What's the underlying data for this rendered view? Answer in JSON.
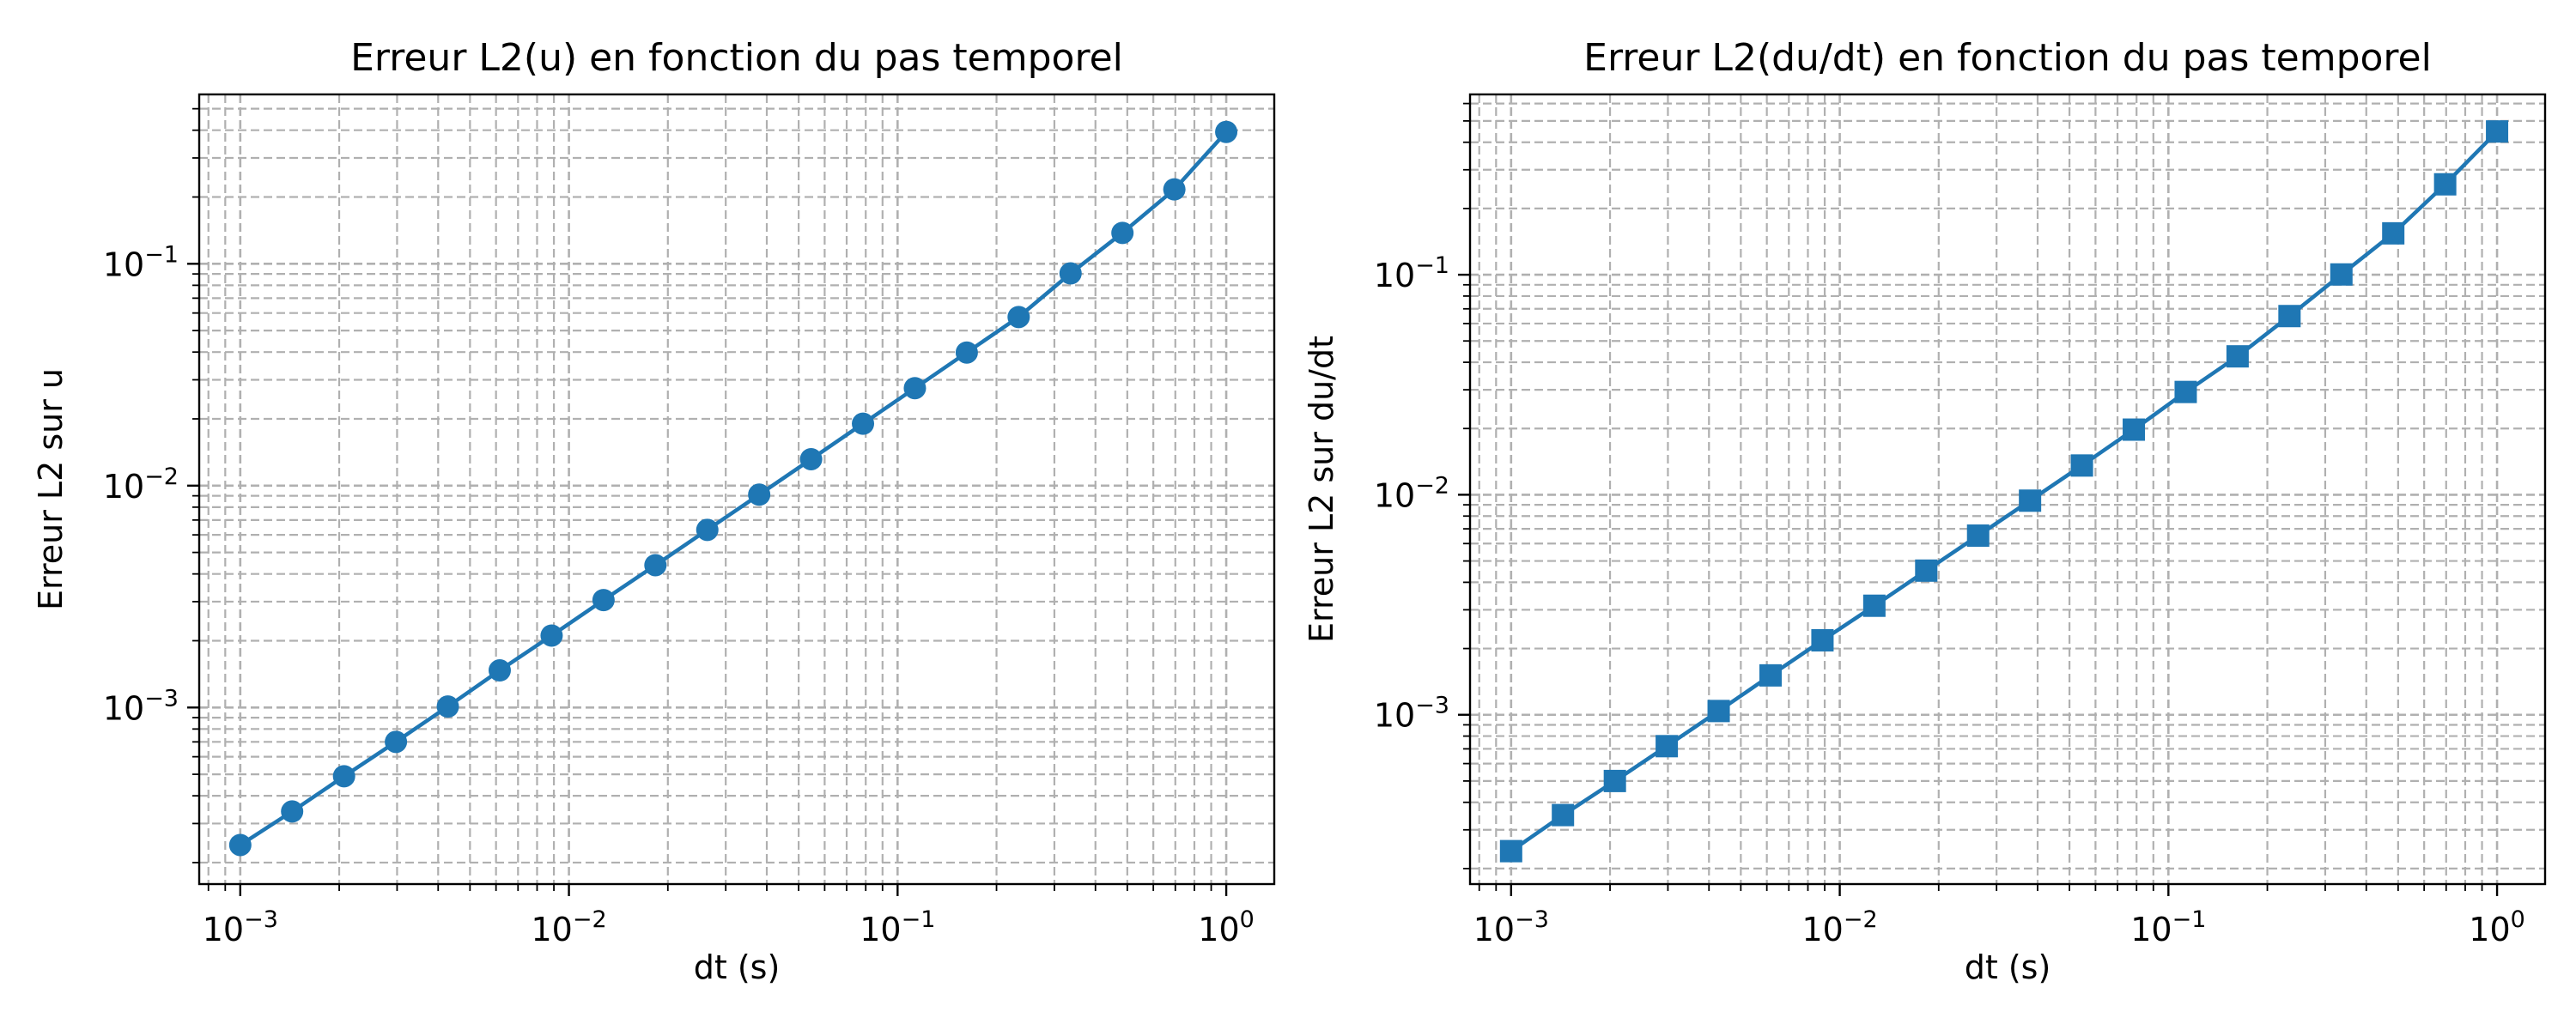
{
  "style": {
    "series_color": "#1f77b4",
    "grid_color": "#b0b0b0",
    "axis_color": "#000000",
    "background": "#ffffff"
  },
  "chart_data": [
    {
      "type": "line",
      "title": "Erreur L2(u) en fonction du pas temporel",
      "xlabel": "dt (s)",
      "ylabel": "Erreur L2 sur u",
      "xscale": "log",
      "yscale": "log",
      "xlim": [
        0.00075,
        1.4
      ],
      "ylim": [
        0.00016,
        0.58
      ],
      "xticks": [
        0.001,
        0.01,
        0.1,
        1
      ],
      "yticks": [
        0.001,
        0.01,
        0.1
      ],
      "grid": "major and minor, dashed",
      "marker": "circle",
      "series": [
        {
          "color": "#1f77b4",
          "x": [
            0.001,
            0.001438,
            0.002069,
            0.002976,
            0.004281,
            0.006158,
            0.008859,
            0.012743,
            0.01833,
            0.026367,
            0.037927,
            0.054556,
            0.078476,
            0.112884,
            0.162378,
            0.233572,
            0.335982,
            0.483293,
            0.695193,
            1.0
          ],
          "y": [
            0.00024,
            0.00034,
            0.00049,
            0.0007,
            0.00101,
            0.00147,
            0.00211,
            0.00305,
            0.00438,
            0.00632,
            0.00911,
            0.01316,
            0.01902,
            0.02751,
            0.03981,
            0.05755,
            0.0905,
            0.1378,
            0.2164,
            0.393
          ]
        }
      ]
    },
    {
      "type": "line",
      "title": "Erreur L2(du/dt) en fonction du pas temporel",
      "xlabel": "dt (s)",
      "ylabel": "Erreur L2 sur du/dt",
      "xscale": "log",
      "yscale": "log",
      "xlim": [
        0.00075,
        1.4
      ],
      "ylim": [
        0.00017,
        0.66
      ],
      "xticks": [
        0.001,
        0.01,
        0.1,
        1
      ],
      "yticks": [
        0.001,
        0.01,
        0.1
      ],
      "grid": "major and minor, dashed",
      "marker": "square",
      "series": [
        {
          "color": "#1f77b4",
          "x": [
            0.001,
            0.001438,
            0.002069,
            0.002976,
            0.004281,
            0.006158,
            0.008859,
            0.012743,
            0.01833,
            0.026367,
            0.037927,
            0.054556,
            0.078476,
            0.112884,
            0.162378,
            0.233572,
            0.335982,
            0.483293,
            0.695193,
            1.0
          ],
          "y": [
            0.00024,
            0.00035,
            0.0005,
            0.00072,
            0.00104,
            0.00151,
            0.00218,
            0.00313,
            0.00452,
            0.00652,
            0.0094,
            0.01358,
            0.01977,
            0.02932,
            0.04256,
            0.06488,
            0.1003,
            0.1542,
            0.2576,
            0.4479
          ]
        }
      ]
    }
  ]
}
